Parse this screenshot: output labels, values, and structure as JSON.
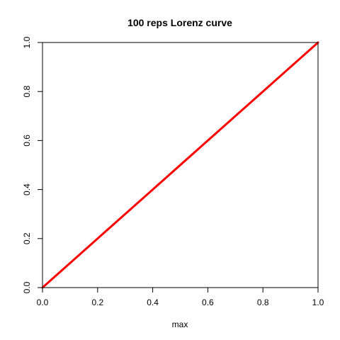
{
  "chart_data": {
    "type": "line",
    "title": "100 reps Lorenz curve",
    "xlabel": "max",
    "ylabel": "",
    "xlim": [
      0,
      1
    ],
    "ylim": [
      0,
      1
    ],
    "x_ticks": [
      "0.0",
      "0.2",
      "0.4",
      "0.6",
      "0.8",
      "1.0"
    ],
    "y_ticks": [
      "0.0",
      "0.2",
      "0.4",
      "0.6",
      "0.8",
      "1.0"
    ],
    "grid": false,
    "legend": "none",
    "series": [
      {
        "color": "#000000",
        "x": [
          0,
          0.2,
          0.4,
          0.6,
          0.8,
          1.0
        ],
        "y": [
          0,
          0.2,
          0.4,
          0.6,
          0.8,
          1.0
        ]
      },
      {
        "color": "#ff0000",
        "x": [
          0,
          0.2,
          0.4,
          0.6,
          0.8,
          1.0
        ],
        "y": [
          0,
          0.2,
          0.4,
          0.6,
          0.8,
          1.0
        ]
      }
    ]
  }
}
